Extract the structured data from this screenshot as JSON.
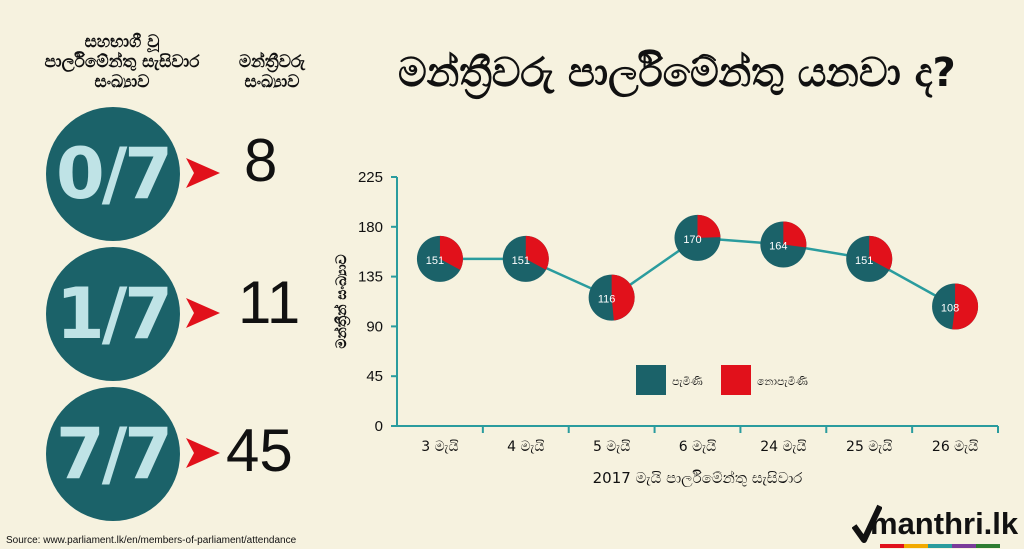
{
  "title": "මන්ත්‍රීවරු පාර්ලිමේන්තු යනවා ද?",
  "left_panel": {
    "header_sessions": "සහභාගී වූ පාර්ලිමේන්තු සැසිවාර සංඛ්‍යාව",
    "header_members": "මන්ත්‍රීවරු සංඛ්‍යාව",
    "rows": [
      {
        "ratio": "0/7",
        "count": "8"
      },
      {
        "ratio": "1/7",
        "count": "11"
      },
      {
        "ratio": "7/7",
        "count": "45"
      }
    ]
  },
  "colors": {
    "teal": "#1b6269",
    "red": "#e1111b",
    "line": "#2a9c9e",
    "background": "#f6f2df"
  },
  "chart_data": {
    "type": "line",
    "title": "",
    "xlabel": "2017 මැයි පාර්ලිමේන්තු සැසිවාර",
    "ylabel": "මන්ත්‍රීන් සංඛ්‍යාව",
    "ylim": [
      0,
      225
    ],
    "yticks": [
      "0",
      "45",
      "90",
      "135",
      "180",
      "225"
    ],
    "categories": [
      "3 මැයි",
      "4 මැයි",
      "5 මැයි",
      "6 මැයි",
      "24 මැයි",
      "25 මැයි",
      "26 මැයි"
    ],
    "total_members": 225,
    "series": [
      {
        "name": "පැමිණි",
        "values": [
          151,
          151,
          116,
          170,
          164,
          151,
          108
        ]
      }
    ],
    "pie_legend": [
      "පැමිණි",
      "නොපැමිණි"
    ],
    "legend_position": "center"
  },
  "source": "Source: www.parliament.lk/en/members-of-parliament/attendance",
  "logo": "manthri.lk"
}
